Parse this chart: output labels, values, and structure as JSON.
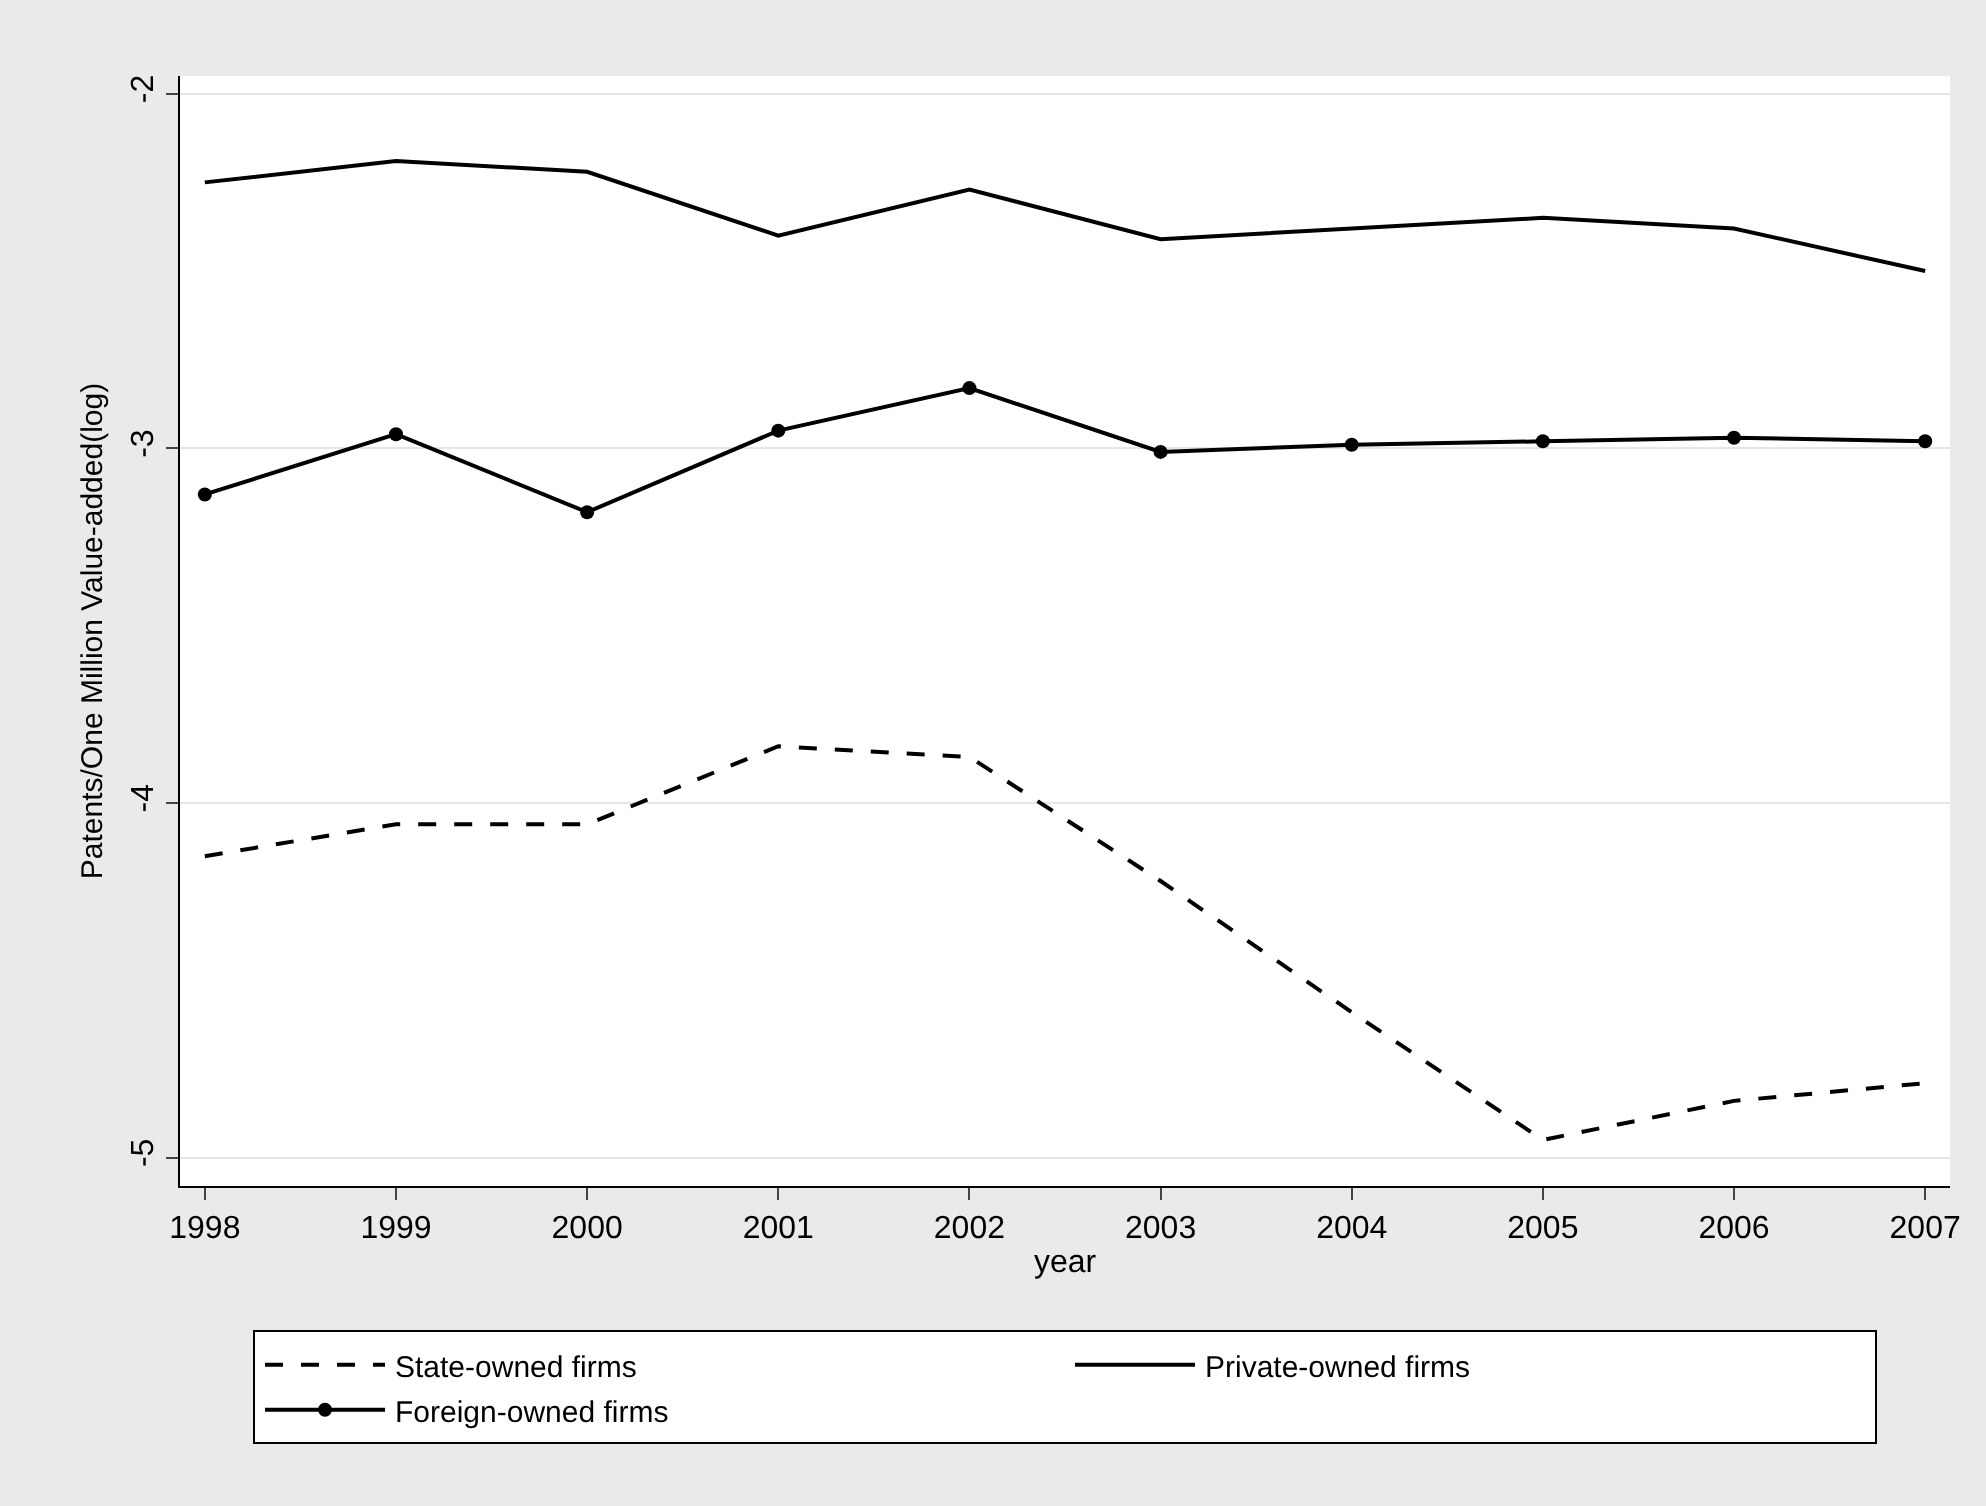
{
  "chart_data": {
    "type": "line",
    "xlabel": "year",
    "ylabel": "Patents/One Million Value-added(log)",
    "x": [
      1998,
      1999,
      2000,
      2001,
      2002,
      2003,
      2004,
      2005,
      2006,
      2007
    ],
    "series": [
      {
        "name": "State-owned firms",
        "color": "#000000",
        "line_style": "dashed",
        "marker": "none",
        "values": [
          -4.15,
          -4.06,
          -4.06,
          -3.84,
          -3.87,
          -4.22,
          -4.59,
          -4.95,
          -4.84,
          -4.79
        ]
      },
      {
        "name": "Private-owned firms",
        "color": "#000000",
        "line_style": "solid",
        "marker": "none",
        "values": [
          -2.25,
          -2.19,
          -2.22,
          -2.4,
          -2.27,
          -2.41,
          -2.38,
          -2.35,
          -2.38,
          -2.5
        ]
      },
      {
        "name": "Foreign-owned firms",
        "color": "#000000",
        "line_style": "solid",
        "marker": "circle",
        "values": [
          -3.13,
          -2.96,
          -3.18,
          -2.95,
          -2.83,
          -3.01,
          -2.99,
          -2.98,
          -2.97,
          -2.98
        ]
      }
    ],
    "xlim": [
      1997.87,
      2007.13
    ],
    "ylim": [
      -5.08,
      -1.95
    ],
    "xticks": [
      1998,
      1999,
      2000,
      2001,
      2002,
      2003,
      2004,
      2005,
      2006,
      2007
    ],
    "yticks": [
      -2,
      -3,
      -4,
      -5
    ],
    "grid": "y",
    "legend": "bottom"
  }
}
